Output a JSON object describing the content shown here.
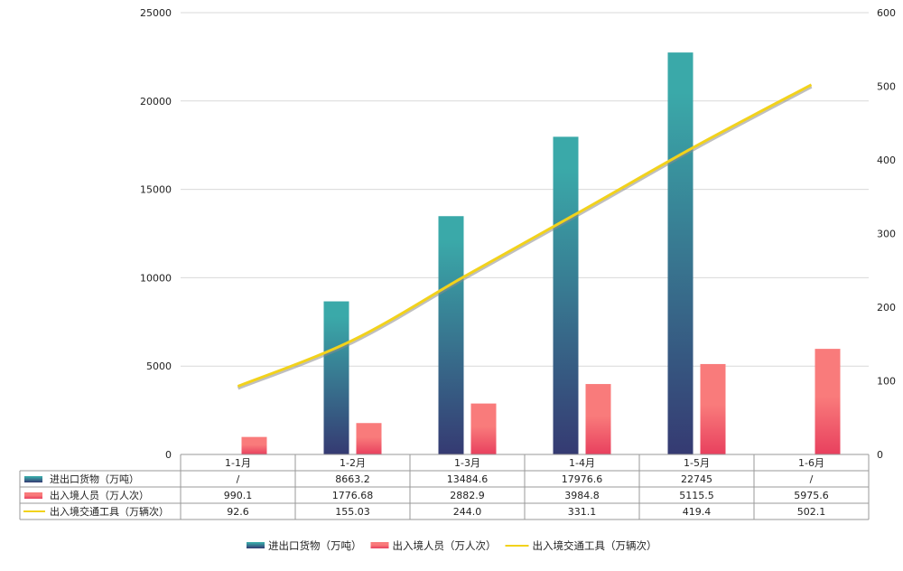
{
  "chart_data": {
    "type": "bar",
    "categories": [
      "1-1月",
      "1-2月",
      "1-3月",
      "1-4月",
      "1-5月",
      "1-6月"
    ],
    "series": [
      {
        "name": "进出口货物（万吨）",
        "kind": "bar",
        "axis": "left",
        "values": [
          null,
          8663.2,
          13484.6,
          17976.6,
          22745,
          null
        ],
        "display": [
          "/",
          "8663.2",
          "13484.6",
          "17976.6",
          "22745",
          "/"
        ],
        "colors": [
          "#3aa9a9",
          "#353a72"
        ]
      },
      {
        "name": "出入境人员（万人次）",
        "kind": "bar",
        "axis": "left",
        "values": [
          990.1,
          1776.68,
          2882.9,
          3984.8,
          5115.5,
          5975.6
        ],
        "display": [
          "990.1",
          "1776.68",
          "2882.9",
          "3984.8",
          "5115.5",
          "5975.6"
        ],
        "colors": [
          "#f97b7b",
          "#e8405e"
        ]
      },
      {
        "name": "出入境交通工具（万辆次）",
        "kind": "line",
        "axis": "right",
        "values": [
          92.6,
          155.03,
          244.0,
          331.1,
          419.4,
          502.1
        ],
        "display": [
          "92.6",
          "155.03",
          "244.0",
          "331.1",
          "419.4",
          "502.1"
        ],
        "color": "#f2d21b"
      }
    ],
    "left_axis": {
      "ylim": [
        0,
        25000
      ],
      "ticks": [
        "0",
        "5000",
        "10000",
        "15000",
        "20000",
        "25000"
      ]
    },
    "right_axis": {
      "ylim": [
        0,
        600
      ],
      "ticks": [
        "0",
        "100",
        "200",
        "300",
        "400",
        "500",
        "600"
      ]
    },
    "grid": true,
    "legend_position": "bottom-center",
    "data_table": true
  }
}
